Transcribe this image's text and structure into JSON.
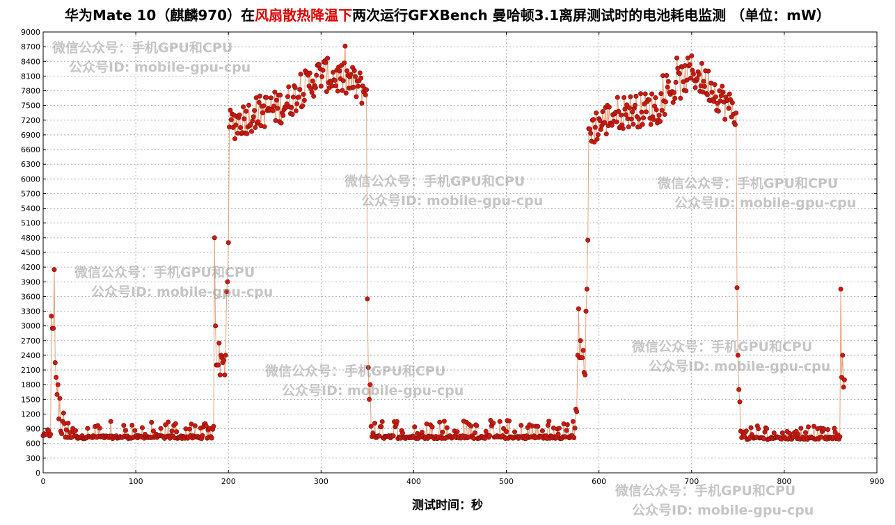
{
  "title": {
    "part1": "华为Mate 10（麒麟970）在",
    "highlight": "风扇散热降温下",
    "part2": "两次运行GFXBench 曼哈顿3.1离屏测试时的电池耗电监测 （单位：mW）"
  },
  "watermark": {
    "line1": "微信公众号：手机GPU和CPU",
    "line2": "公众号ID: mobile-gpu-cpu"
  },
  "chart_data": {
    "type": "line",
    "title": "华为Mate 10（麒麟970）在风扇散热降温下两次运行GFXBench 曼哈顿3.1离屏测试时的电池耗电监测 （单位：mW）",
    "xlabel": "测试时间：秒",
    "ylabel": "",
    "xlim": [
      0,
      900
    ],
    "ylim": [
      0,
      9000
    ],
    "x_ticks": [
      "0",
      "100",
      "200",
      "300",
      "400",
      "500",
      "600",
      "700",
      "800",
      "900"
    ],
    "y_ticks": [
      "0",
      "300",
      "600",
      "900",
      "1200",
      "1500",
      "1800",
      "2100",
      "2400",
      "2700",
      "3000",
      "3300",
      "3600",
      "3900",
      "4200",
      "4500",
      "4800",
      "5100",
      "5400",
      "5700",
      "6000",
      "6300",
      "6600",
      "6900",
      "7200",
      "7500",
      "7800",
      "8100",
      "8400",
      "8700",
      "9000"
    ],
    "grid": true,
    "line_color": "#e8a07a",
    "marker_color": "#cc1a10",
    "segments": [
      {
        "phase": "idle",
        "x_start": 0,
        "x_end": 8,
        "low": 740,
        "high": 1000
      },
      {
        "phase": "spike",
        "points": [
          [
            9,
            3200
          ],
          [
            10,
            2950
          ],
          [
            11,
            2950
          ],
          [
            12,
            4150
          ],
          [
            13,
            2250
          ],
          [
            14,
            1950
          ],
          [
            15,
            1600
          ],
          [
            16,
            1800
          ],
          [
            17,
            1100
          ],
          [
            18,
            1520
          ],
          [
            19,
            850
          ],
          [
            20,
            800
          ],
          [
            21,
            1050
          ],
          [
            22,
            1220
          ]
        ]
      },
      {
        "phase": "idle",
        "x_start": 23,
        "x_end": 183,
        "low": 700,
        "high": 1050
      },
      {
        "phase": "ramp",
        "points": [
          [
            184,
            950
          ],
          [
            185,
            4800
          ],
          [
            186,
            3000
          ],
          [
            187,
            2200
          ],
          [
            188,
            2200
          ],
          [
            189,
            2200
          ],
          [
            190,
            2650
          ],
          [
            191,
            2000
          ],
          [
            192,
            2400
          ],
          [
            193,
            2350
          ],
          [
            194,
            2250
          ],
          [
            195,
            2300
          ],
          [
            196,
            2000
          ],
          [
            197,
            2400
          ],
          [
            198,
            3700
          ],
          [
            199,
            3900
          ],
          [
            200,
            4700
          ]
        ]
      },
      {
        "phase": "load",
        "x_start": 201,
        "x_end": 349,
        "trend": [
          [
            201,
            7100
          ],
          [
            230,
            7350
          ],
          [
            260,
            7500
          ],
          [
            300,
            8150
          ],
          [
            330,
            8000
          ],
          [
            349,
            7800
          ]
        ],
        "spread": 350
      },
      {
        "phase": "drop",
        "points": [
          [
            350,
            3550
          ],
          [
            351,
            2150
          ],
          [
            352,
            1500
          ],
          [
            353,
            1800
          ],
          [
            354,
            950
          ]
        ]
      },
      {
        "phase": "idle",
        "x_start": 355,
        "x_end": 574,
        "low": 700,
        "high": 1080
      },
      {
        "phase": "ramp",
        "points": [
          [
            575,
            1300
          ],
          [
            576,
            1250
          ],
          [
            577,
            2400
          ],
          [
            578,
            3350
          ],
          [
            579,
            2350
          ],
          [
            580,
            2700
          ],
          [
            581,
            2350
          ],
          [
            582,
            2350
          ],
          [
            583,
            2500
          ],
          [
            584,
            2050
          ],
          [
            585,
            2000
          ],
          [
            586,
            3300
          ],
          [
            587,
            3750
          ],
          [
            588,
            4750
          ]
        ]
      },
      {
        "phase": "load",
        "x_start": 589,
        "x_end": 748,
        "trend": [
          [
            589,
            7000
          ],
          [
            620,
            7350
          ],
          [
            660,
            7450
          ],
          [
            700,
            8200
          ],
          [
            720,
            7900
          ],
          [
            748,
            7300
          ]
        ],
        "spread": 350
      },
      {
        "phase": "drop",
        "points": [
          [
            749,
            3780
          ],
          [
            750,
            2400
          ],
          [
            751,
            1700
          ],
          [
            752,
            1450
          ],
          [
            753,
            850
          ]
        ]
      },
      {
        "phase": "idle",
        "x_start": 754,
        "x_end": 860,
        "low": 680,
        "high": 960
      },
      {
        "phase": "end",
        "points": [
          [
            861,
            3750
          ],
          [
            862,
            1950
          ],
          [
            863,
            2400
          ],
          [
            864,
            1750
          ],
          [
            865,
            1900
          ]
        ]
      }
    ]
  }
}
